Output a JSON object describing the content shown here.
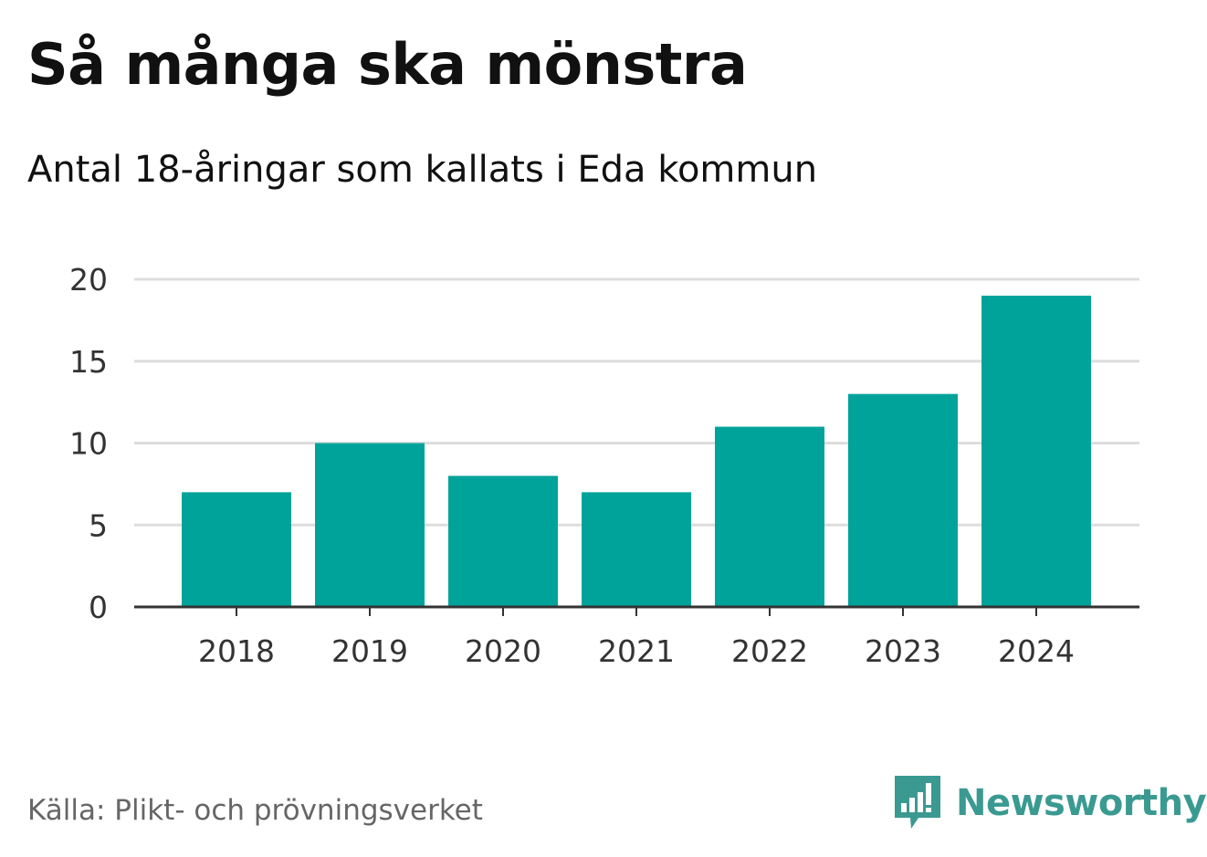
{
  "header": {
    "title": "Så många ska mönstra",
    "subtitle": "Antal 18-åringar som kallats i Eda kommun"
  },
  "footer": {
    "source": "Källa: Plikt- och prövningsverket",
    "brand": "Newsworthy",
    "brand_icon": "newsworthy-logo-icon"
  },
  "colors": {
    "bar": "#00a39a",
    "grid": "#dddddd",
    "axis": "#333333",
    "tick_text": "#333333",
    "brand": "#3a9a91"
  },
  "chart_data": {
    "type": "bar",
    "title": "Så många ska mönstra",
    "subtitle": "Antal 18-åringar som kallats i Eda kommun",
    "categories": [
      "2018",
      "2019",
      "2020",
      "2021",
      "2022",
      "2023",
      "2024"
    ],
    "values": [
      7,
      10,
      8,
      7,
      11,
      13,
      19
    ],
    "yticks": [
      0,
      5,
      10,
      15,
      20
    ],
    "ylim": [
      0,
      20
    ],
    "xlabel": "",
    "ylabel": "",
    "grid": true,
    "legend": "none"
  }
}
